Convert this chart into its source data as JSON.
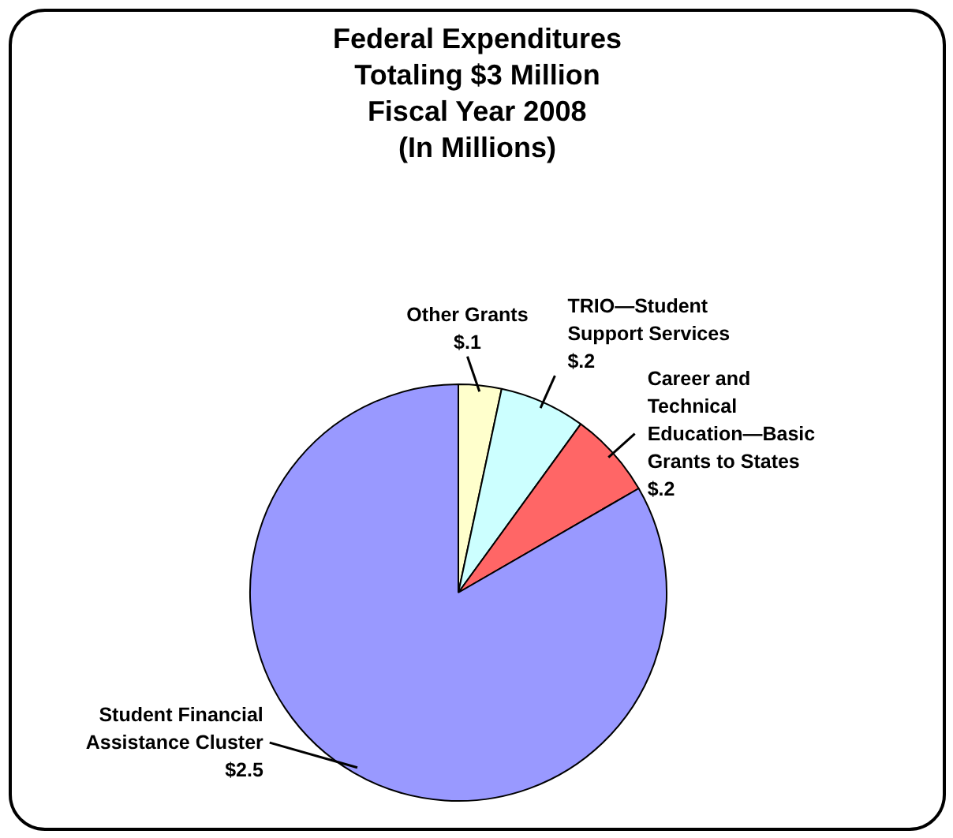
{
  "chart_data": {
    "type": "pie",
    "title": "Federal Expenditures\nTotaling $3 Million\nFiscal Year 2008\n(In Millions)",
    "categories": [
      "Other Grants",
      "TRIO—Student\nSupport Services",
      "Career and\nTechnical\nEducation—Basic\nGrants to States",
      "Student Financial\nAssistance Cluster"
    ],
    "values": [
      0.1,
      0.2,
      0.2,
      2.5
    ],
    "colors": [
      "#ffffcc",
      "#ccffff",
      "#ff6666",
      "#9999ff"
    ],
    "value_labels": [
      "$.1",
      "$.2",
      "$.2",
      "$2.5"
    ]
  }
}
